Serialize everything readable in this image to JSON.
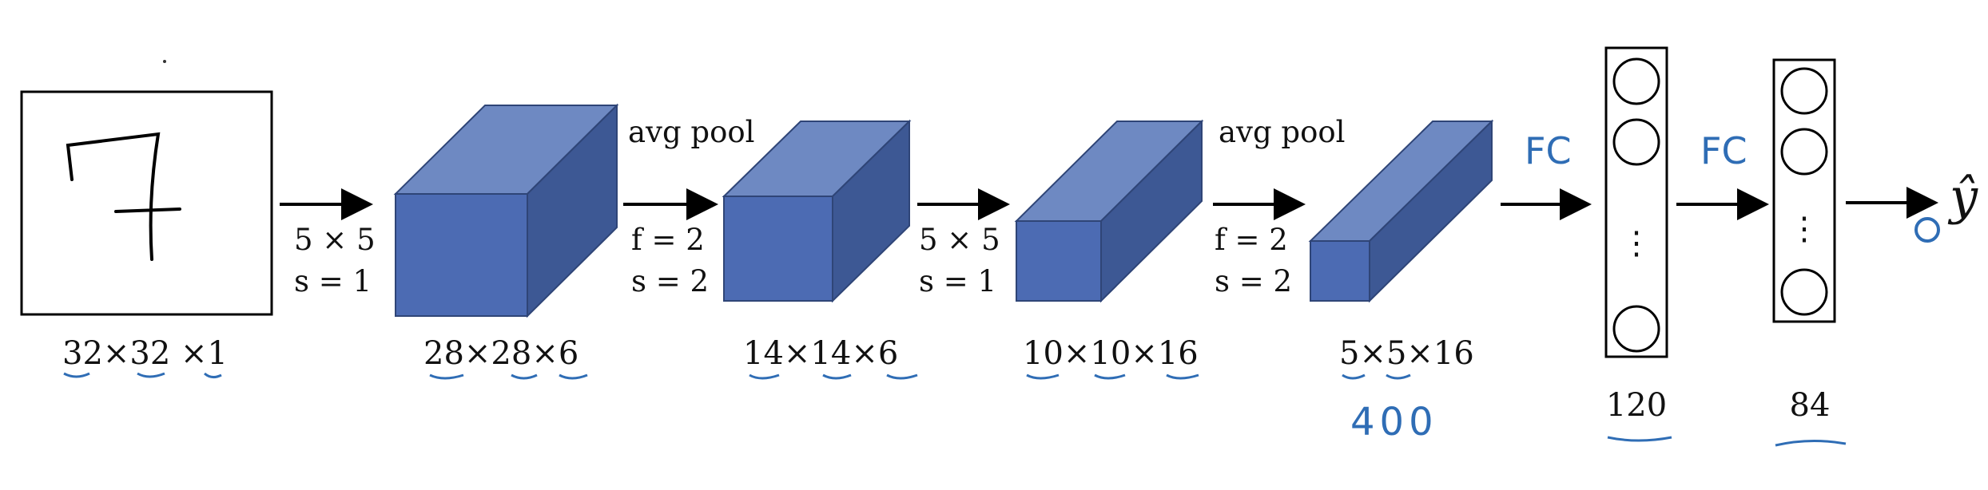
{
  "input": {
    "digit": "7",
    "dims": "32×32 ×1"
  },
  "layers": [
    {
      "op_line1": "5 × 5",
      "op_line2": "s = 1",
      "dims": "28×28×6"
    },
    {
      "op_title": "avg pool",
      "op_line1": "f = 2",
      "op_line2": "s = 2",
      "dims": "14×14×6"
    },
    {
      "op_line1": "5 × 5",
      "op_line2": "s = 1",
      "dims": "10×10×16"
    },
    {
      "op_title": "avg pool",
      "op_line1": "f = 2",
      "op_line2": "s = 2",
      "dims": "5×5×16"
    }
  ],
  "flatten_note": "400",
  "fc_layers": [
    {
      "label": "FC",
      "units": "120",
      "ellipsis": "⋮"
    },
    {
      "label": "FC",
      "units": "84",
      "ellipsis": "⋮"
    }
  ],
  "output": {
    "label": "ŷ"
  },
  "colors": {
    "box_front": "#4c6bb3",
    "box_top": "#6e89c2",
    "box_side": "#3d5894",
    "box_edge": "#2f4577",
    "ink": "#2f6db5"
  }
}
